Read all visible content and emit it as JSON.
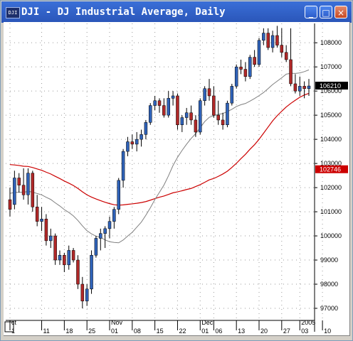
{
  "window": {
    "title": "DJI - DJ Industrial Average, Daily",
    "icon_label": "DJI",
    "minimize_label": "_",
    "maximize_label": "□",
    "close_label": "×"
  },
  "chart_data": {
    "type": "candlestick",
    "ylim": [
      9650,
      10880
    ],
    "y_ticks": [
      {
        "value": 9700,
        "label": "97000"
      },
      {
        "value": 9800,
        "label": "98000"
      },
      {
        "value": 9900,
        "label": "99000"
      },
      {
        "value": 10000,
        "label": "100000"
      },
      {
        "value": 10100,
        "label": "101000"
      },
      {
        "value": 10200,
        "label": "102000"
      },
      {
        "value": 10300,
        "label": "103000"
      },
      {
        "value": 10400,
        "label": "104000"
      },
      {
        "value": 10500,
        "label": "105000"
      },
      {
        "value": 10600,
        "label": "106000"
      },
      {
        "value": 10700,
        "label": "107000"
      },
      {
        "value": 10800,
        "label": "108000"
      }
    ],
    "x_ticks": [
      {
        "index": 0,
        "label": "1",
        "upper": "ct"
      },
      {
        "index": 7,
        "label": "11",
        "upper": ""
      },
      {
        "index": 12,
        "label": "18",
        "upper": ""
      },
      {
        "index": 17,
        "label": "25",
        "upper": ""
      },
      {
        "index": 22,
        "label": "01",
        "upper": "Nov"
      },
      {
        "index": 27,
        "label": "08",
        "upper": ""
      },
      {
        "index": 32,
        "label": "15",
        "upper": ""
      },
      {
        "index": 37,
        "label": "22",
        "upper": ""
      },
      {
        "index": 42,
        "label": "01",
        "upper": "Dec"
      },
      {
        "index": 45,
        "label": "06",
        "upper": ""
      },
      {
        "index": 50,
        "label": "13",
        "upper": ""
      },
      {
        "index": 55,
        "label": "20",
        "upper": ""
      },
      {
        "index": 60,
        "label": "27",
        "upper": ""
      },
      {
        "index": 64,
        "label": "03",
        "upper": "2005"
      },
      {
        "index": 69,
        "label": "10",
        "upper": ""
      }
    ],
    "price_tag": {
      "value": 10621,
      "label": "106210"
    },
    "ma_tag": {
      "value": 10274.6,
      "label": "102746"
    },
    "series": [
      {
        "type": "ohlc",
        "values": [
          [
            10150,
            10200,
            10080,
            10110
          ],
          [
            10130,
            10270,
            10110,
            10240
          ],
          [
            10240,
            10260,
            10180,
            10210
          ],
          [
            10210,
            10280,
            10150,
            10170
          ],
          [
            10170,
            10280,
            10130,
            10260
          ],
          [
            10260,
            10270,
            10100,
            10120
          ],
          [
            10120,
            10170,
            10040,
            10060
          ],
          [
            10060,
            10120,
            10020,
            10070
          ],
          [
            10070,
            10090,
            9960,
            9980
          ],
          [
            9980,
            10030,
            9950,
            10000
          ],
          [
            10000,
            10010,
            9880,
            9900
          ],
          [
            9900,
            9940,
            9880,
            9920
          ],
          [
            9920,
            9930,
            9850,
            9880
          ],
          [
            9880,
            9960,
            9860,
            9940
          ],
          [
            9940,
            9950,
            9890,
            9900
          ],
          [
            9900,
            9920,
            9780,
            9800
          ],
          [
            9800,
            9830,
            9700,
            9730
          ],
          [
            9730,
            9800,
            9710,
            9780
          ],
          [
            9780,
            9940,
            9760,
            9920
          ],
          [
            9920,
            10000,
            9910,
            9990
          ],
          [
            9990,
            10030,
            9940,
            10010
          ],
          [
            10010,
            10040,
            9950,
            10030
          ],
          [
            10030,
            10080,
            9990,
            10060
          ],
          [
            10060,
            10120,
            10030,
            10110
          ],
          [
            10110,
            10240,
            10090,
            10230
          ],
          [
            10230,
            10360,
            10200,
            10350
          ],
          [
            10350,
            10410,
            10330,
            10390
          ],
          [
            10390,
            10420,
            10360,
            10380
          ],
          [
            10380,
            10430,
            10350,
            10400
          ],
          [
            10400,
            10440,
            10370,
            10420
          ],
          [
            10420,
            10480,
            10400,
            10470
          ],
          [
            10470,
            10550,
            10460,
            10540
          ],
          [
            10540,
            10580,
            10520,
            10560
          ],
          [
            10560,
            10570,
            10510,
            10540
          ],
          [
            10540,
            10570,
            10490,
            10500
          ],
          [
            10500,
            10600,
            10490,
            10570
          ],
          [
            10570,
            10600,
            10540,
            10580
          ],
          [
            10580,
            10590,
            10440,
            10460
          ],
          [
            10460,
            10500,
            10430,
            10490
          ],
          [
            10490,
            10530,
            10460,
            10510
          ],
          [
            10510,
            10540,
            10460,
            10480
          ],
          [
            10480,
            10500,
            10410,
            10430
          ],
          [
            10430,
            10570,
            10420,
            10560
          ],
          [
            10560,
            10620,
            10540,
            10610
          ],
          [
            10610,
            10650,
            10560,
            10580
          ],
          [
            10580,
            10620,
            10490,
            10500
          ],
          [
            10500,
            10560,
            10460,
            10480
          ],
          [
            10480,
            10510,
            10440,
            10460
          ],
          [
            10460,
            10560,
            10450,
            10550
          ],
          [
            10550,
            10630,
            10540,
            10620
          ],
          [
            10620,
            10710,
            10610,
            10700
          ],
          [
            10700,
            10730,
            10670,
            10690
          ],
          [
            10690,
            10720,
            10640,
            10660
          ],
          [
            10660,
            10750,
            10650,
            10740
          ],
          [
            10740,
            10770,
            10700,
            10710
          ],
          [
            10710,
            10820,
            10700,
            10810
          ],
          [
            10810,
            10860,
            10790,
            10840
          ],
          [
            10840,
            10860,
            10770,
            10780
          ],
          [
            10780,
            10850,
            10760,
            10830
          ],
          [
            10830,
            10870,
            10780,
            10790
          ],
          [
            10790,
            10860,
            10740,
            10760
          ],
          [
            10760,
            10790,
            10720,
            10730
          ],
          [
            10730,
            10860,
            10620,
            10630
          ],
          [
            10630,
            10670,
            10590,
            10600
          ],
          [
            10600,
            10660,
            10580,
            10620
          ],
          [
            10620,
            10640,
            10570,
            10610
          ],
          [
            10610,
            10650,
            10580,
            10621
          ]
        ]
      }
    ]
  }
}
